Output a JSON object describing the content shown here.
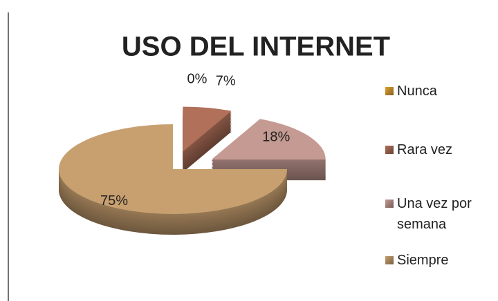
{
  "chart_data": {
    "type": "pie",
    "title": "USO DEL INTERNET",
    "categories": [
      "Nunca",
      "Rara vez",
      "Una vez por semana",
      "Siempre"
    ],
    "values": [
      0,
      7,
      18,
      75
    ],
    "value_labels": [
      "0%",
      "7%",
      "18%",
      "75%"
    ],
    "colors": [
      "#e0a030",
      "#b0705a",
      "#c49a92",
      "#c8a070"
    ],
    "legend": "right"
  }
}
